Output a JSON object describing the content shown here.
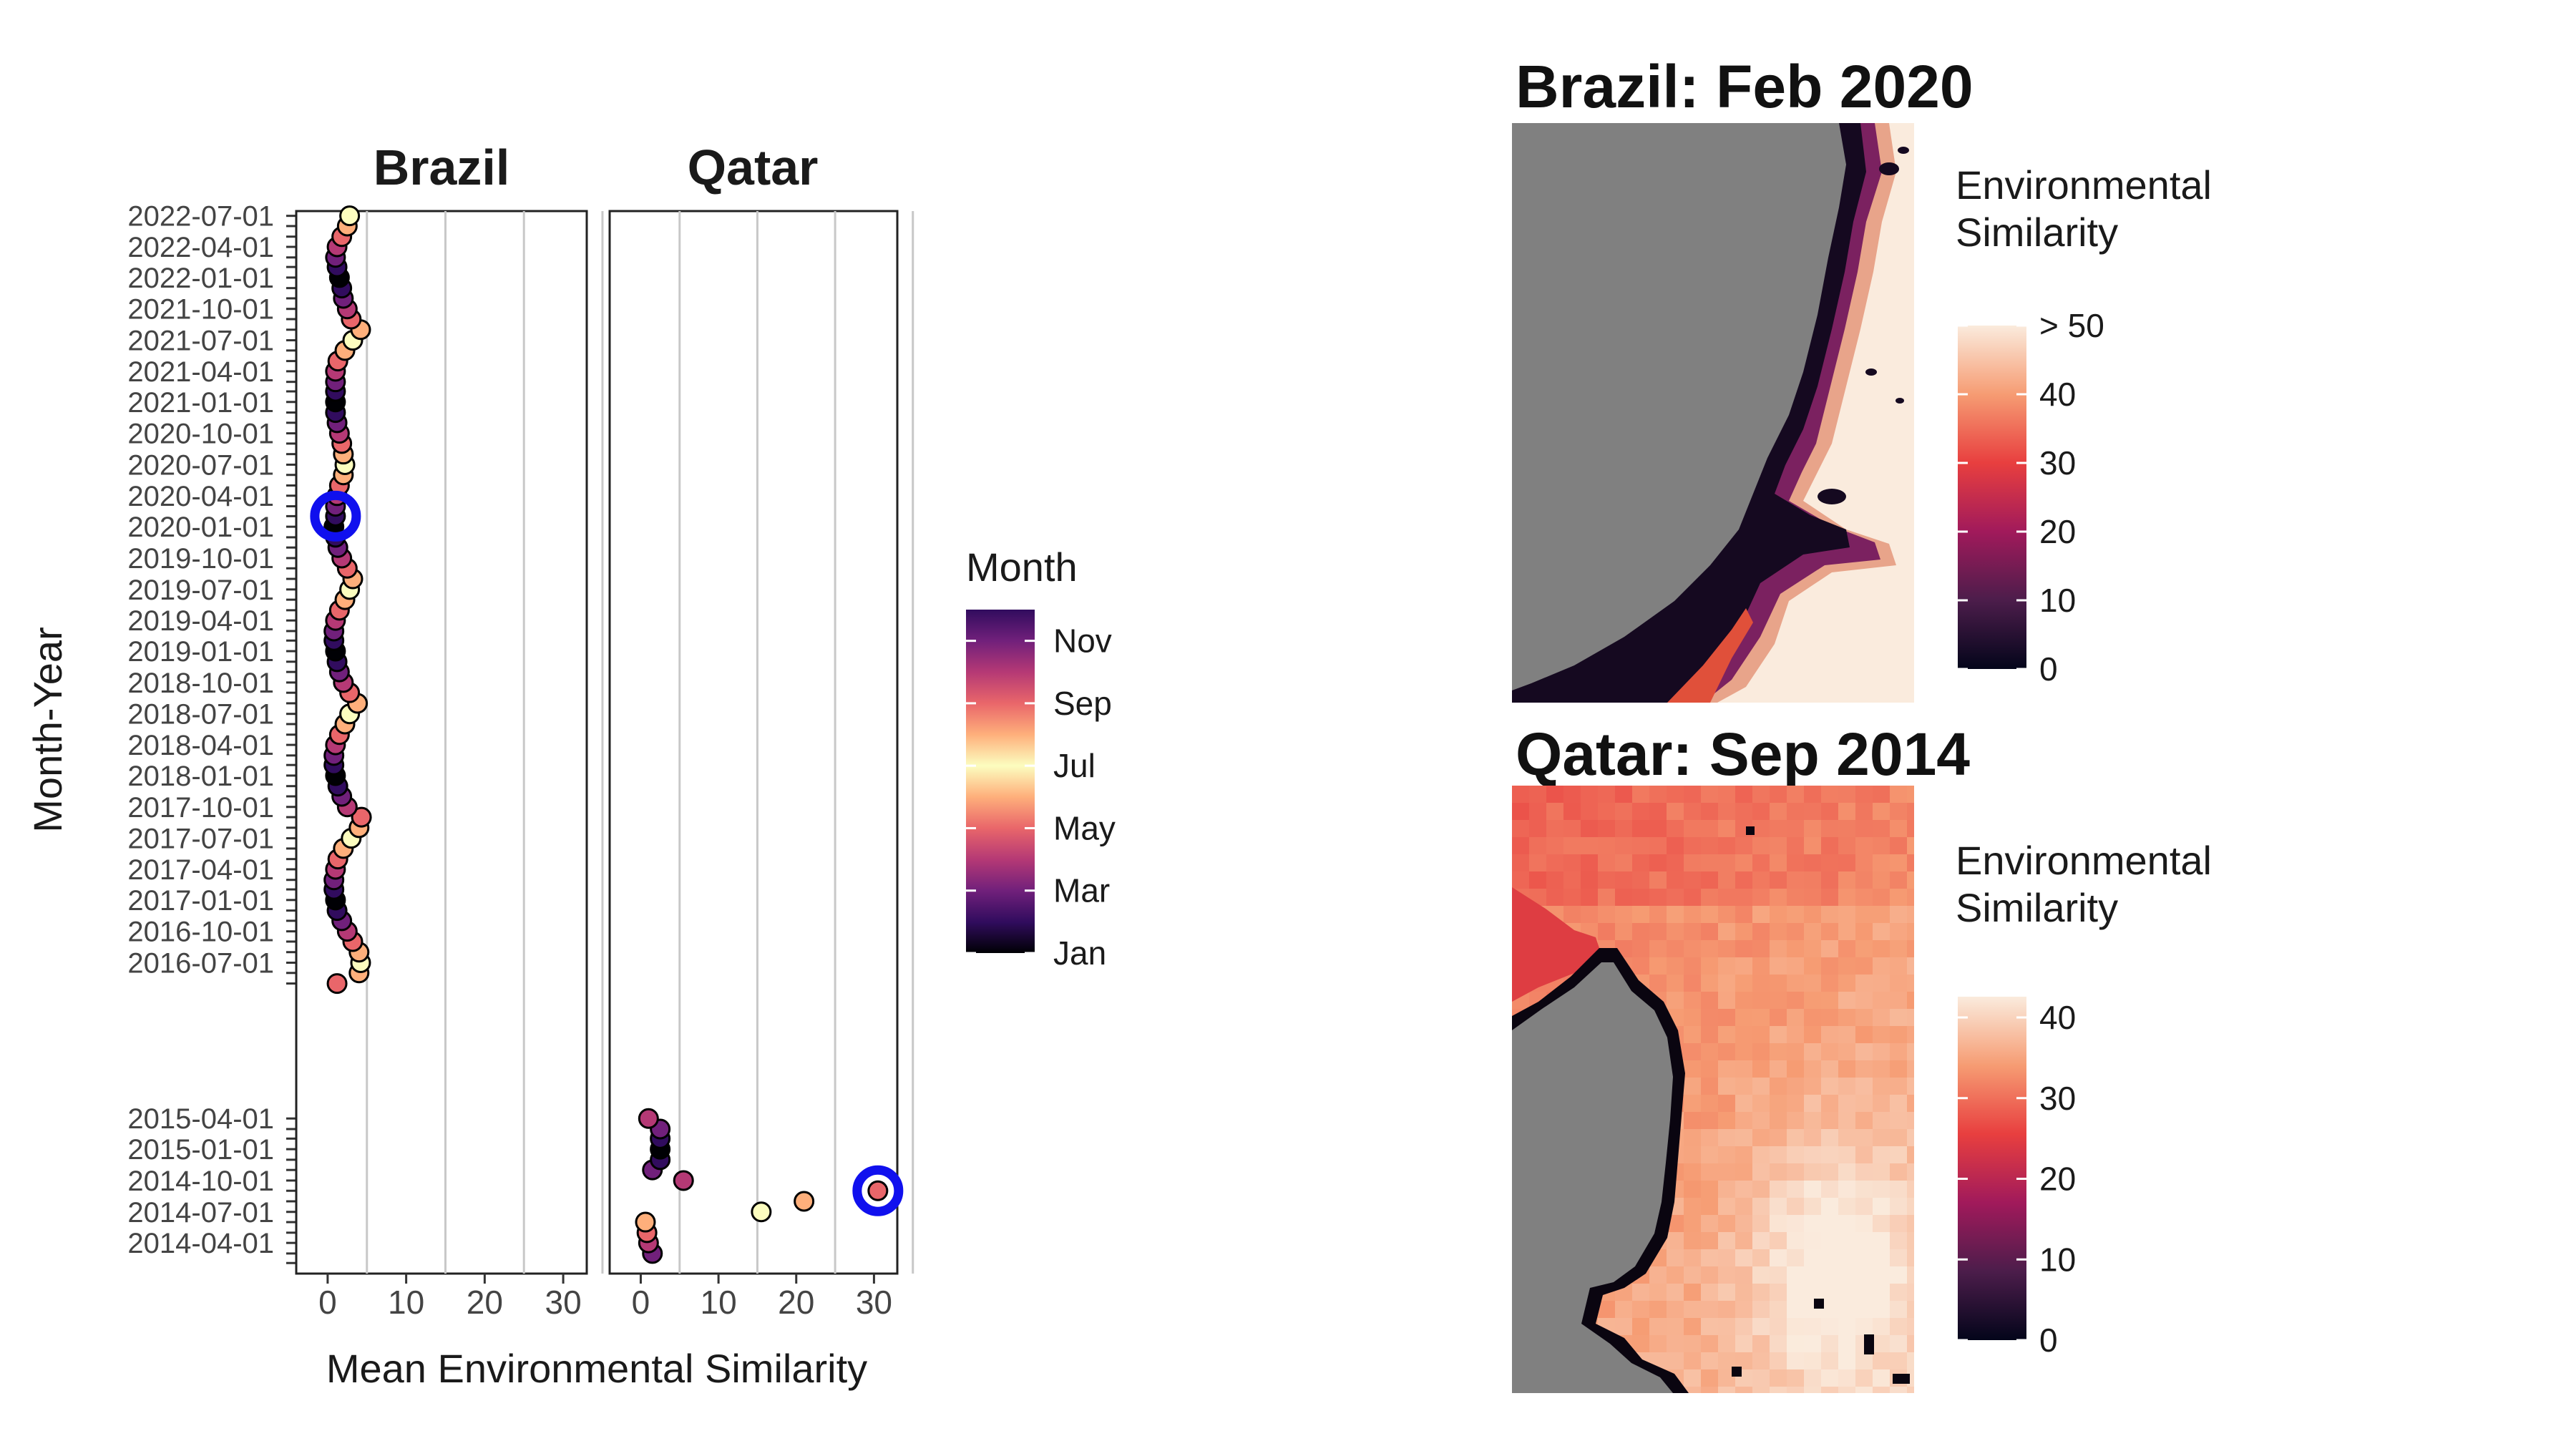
{
  "dotplot": {
    "type": "scatter",
    "x_label": "Mean Environmental Similarity",
    "y_label": "Month-Year",
    "x_ticks": [
      0,
      10,
      20,
      30
    ],
    "xlim": [
      -4,
      33
    ],
    "y_tick_labels": [
      "2014-04-01",
      "2014-07-01",
      "2014-10-01",
      "2015-01-01",
      "2015-04-01",
      "2016-07-01",
      "2016-10-01",
      "2017-01-01",
      "2017-04-01",
      "2017-07-01",
      "2017-10-01",
      "2018-01-01",
      "2018-04-01",
      "2018-07-01",
      "2018-10-01",
      "2019-01-01",
      "2019-04-01",
      "2019-07-01",
      "2019-10-01",
      "2020-01-01",
      "2020-04-01",
      "2020-07-01",
      "2020-10-01",
      "2021-01-01",
      "2021-04-01",
      "2021-07-01",
      "2021-10-01",
      "2022-01-01",
      "2022-04-01",
      "2022-07-01"
    ],
    "grid": true,
    "panels": [
      {
        "title": "Brazil",
        "points": [
          {
            "date": "2016-05-01",
            "x": 1.2,
            "month": "May"
          },
          {
            "date": "2016-06-01",
            "x": 4.0,
            "month": "Jun"
          },
          {
            "date": "2016-07-01",
            "x": 4.2,
            "month": "Jul"
          },
          {
            "date": "2016-08-01",
            "x": 4.0,
            "month": "Aug"
          },
          {
            "date": "2016-09-01",
            "x": 3.2,
            "month": "Sep"
          },
          {
            "date": "2016-10-01",
            "x": 2.5,
            "month": "Oct"
          },
          {
            "date": "2016-11-01",
            "x": 1.8,
            "month": "Nov"
          },
          {
            "date": "2016-12-01",
            "x": 1.2,
            "month": "Dec"
          },
          {
            "date": "2017-01-01",
            "x": 1.0,
            "month": "Jan"
          },
          {
            "date": "2017-02-01",
            "x": 0.8,
            "month": "Feb"
          },
          {
            "date": "2017-03-01",
            "x": 0.8,
            "month": "Mar"
          },
          {
            "date": "2017-04-01",
            "x": 1.0,
            "month": "Apr"
          },
          {
            "date": "2017-05-01",
            "x": 1.3,
            "month": "May"
          },
          {
            "date": "2017-06-01",
            "x": 2.0,
            "month": "Jun"
          },
          {
            "date": "2017-07-01",
            "x": 3.0,
            "month": "Jul"
          },
          {
            "date": "2017-08-01",
            "x": 4.0,
            "month": "Aug"
          },
          {
            "date": "2017-09-01",
            "x": 4.3,
            "month": "Sep"
          },
          {
            "date": "2017-10-01",
            "x": 2.5,
            "month": "Oct"
          },
          {
            "date": "2017-11-01",
            "x": 1.8,
            "month": "Nov"
          },
          {
            "date": "2017-12-01",
            "x": 1.3,
            "month": "Dec"
          },
          {
            "date": "2018-01-01",
            "x": 1.0,
            "month": "Jan"
          },
          {
            "date": "2018-02-01",
            "x": 0.8,
            "month": "Feb"
          },
          {
            "date": "2018-03-01",
            "x": 0.8,
            "month": "Mar"
          },
          {
            "date": "2018-04-01",
            "x": 1.0,
            "month": "Apr"
          },
          {
            "date": "2018-05-01",
            "x": 1.5,
            "month": "May"
          },
          {
            "date": "2018-06-01",
            "x": 2.2,
            "month": "Jun"
          },
          {
            "date": "2018-07-01",
            "x": 2.8,
            "month": "Jul"
          },
          {
            "date": "2018-08-01",
            "x": 3.8,
            "month": "Aug"
          },
          {
            "date": "2018-09-01",
            "x": 2.8,
            "month": "Sep"
          },
          {
            "date": "2018-10-01",
            "x": 2.0,
            "month": "Oct"
          },
          {
            "date": "2018-11-01",
            "x": 1.5,
            "month": "Nov"
          },
          {
            "date": "2018-12-01",
            "x": 1.2,
            "month": "Dec"
          },
          {
            "date": "2019-01-01",
            "x": 1.0,
            "month": "Jan"
          },
          {
            "date": "2019-02-01",
            "x": 0.8,
            "month": "Feb"
          },
          {
            "date": "2019-03-01",
            "x": 0.8,
            "month": "Mar"
          },
          {
            "date": "2019-04-01",
            "x": 1.0,
            "month": "Apr"
          },
          {
            "date": "2019-05-01",
            "x": 1.5,
            "month": "May"
          },
          {
            "date": "2019-06-01",
            "x": 2.2,
            "month": "Jun"
          },
          {
            "date": "2019-07-01",
            "x": 2.8,
            "month": "Jul"
          },
          {
            "date": "2019-08-01",
            "x": 3.2,
            "month": "Aug"
          },
          {
            "date": "2019-09-01",
            "x": 2.5,
            "month": "Sep"
          },
          {
            "date": "2019-10-01",
            "x": 1.8,
            "month": "Oct"
          },
          {
            "date": "2019-11-01",
            "x": 1.3,
            "month": "Nov"
          },
          {
            "date": "2019-12-01",
            "x": 1.0,
            "month": "Dec"
          },
          {
            "date": "2020-01-01",
            "x": 0.8,
            "month": "Jan"
          },
          {
            "date": "2020-02-01",
            "x": 1.0,
            "month": "Feb"
          },
          {
            "date": "2020-03-01",
            "x": 1.0,
            "month": "Mar"
          },
          {
            "date": "2020-04-01",
            "x": 1.2,
            "month": "Apr"
          },
          {
            "date": "2020-05-01",
            "x": 1.5,
            "month": "May"
          },
          {
            "date": "2020-06-01",
            "x": 2.0,
            "month": "Jun"
          },
          {
            "date": "2020-07-01",
            "x": 2.2,
            "month": "Jul"
          },
          {
            "date": "2020-08-01",
            "x": 2.0,
            "month": "Aug"
          },
          {
            "date": "2020-09-01",
            "x": 1.8,
            "month": "Sep"
          },
          {
            "date": "2020-10-01",
            "x": 1.5,
            "month": "Oct"
          },
          {
            "date": "2020-11-01",
            "x": 1.2,
            "month": "Nov"
          },
          {
            "date": "2020-12-01",
            "x": 1.0,
            "month": "Dec"
          },
          {
            "date": "2021-01-01",
            "x": 1.0,
            "month": "Jan"
          },
          {
            "date": "2021-02-01",
            "x": 1.0,
            "month": "Feb"
          },
          {
            "date": "2021-03-01",
            "x": 1.0,
            "month": "Mar"
          },
          {
            "date": "2021-04-01",
            "x": 1.0,
            "month": "Apr"
          },
          {
            "date": "2021-05-01",
            "x": 1.3,
            "month": "May"
          },
          {
            "date": "2021-06-01",
            "x": 2.2,
            "month": "Jun"
          },
          {
            "date": "2021-07-01",
            "x": 3.2,
            "month": "Jul"
          },
          {
            "date": "2021-08-01",
            "x": 4.2,
            "month": "Aug"
          },
          {
            "date": "2021-09-01",
            "x": 3.0,
            "month": "Sep"
          },
          {
            "date": "2021-10-01",
            "x": 2.5,
            "month": "Oct"
          },
          {
            "date": "2021-11-01",
            "x": 2.0,
            "month": "Nov"
          },
          {
            "date": "2021-12-01",
            "x": 1.8,
            "month": "Dec"
          },
          {
            "date": "2022-01-01",
            "x": 1.5,
            "month": "Jan"
          },
          {
            "date": "2022-02-01",
            "x": 1.2,
            "month": "Feb"
          },
          {
            "date": "2022-03-01",
            "x": 1.0,
            "month": "Mar"
          },
          {
            "date": "2022-04-01",
            "x": 1.2,
            "month": "Apr"
          },
          {
            "date": "2022-05-01",
            "x": 1.8,
            "month": "May"
          },
          {
            "date": "2022-06-01",
            "x": 2.5,
            "month": "Jun"
          },
          {
            "date": "2022-07-01",
            "x": 2.8,
            "month": "Jul"
          }
        ],
        "highlight": {
          "date": "2020-02-01",
          "x": 1.0
        }
      },
      {
        "title": "Qatar",
        "points": [
          {
            "date": "2014-03-01",
            "x": 1.5,
            "month": "Mar"
          },
          {
            "date": "2014-04-01",
            "x": 1.0,
            "month": "Apr"
          },
          {
            "date": "2014-05-01",
            "x": 0.8,
            "month": "May"
          },
          {
            "date": "2014-06-01",
            "x": 0.6,
            "month": "Jun"
          },
          {
            "date": "2014-07-01",
            "x": 15.5,
            "month": "Jul"
          },
          {
            "date": "2014-08-01",
            "x": 21.0,
            "month": "Aug"
          },
          {
            "date": "2014-09-01",
            "x": 30.5,
            "month": "Sep"
          },
          {
            "date": "2014-10-01",
            "x": 5.5,
            "month": "Oct"
          },
          {
            "date": "2014-11-01",
            "x": 1.5,
            "month": "Nov"
          },
          {
            "date": "2014-12-01",
            "x": 2.5,
            "month": "Dec"
          },
          {
            "date": "2015-01-01",
            "x": 2.5,
            "month": "Jan"
          },
          {
            "date": "2015-02-01",
            "x": 2.5,
            "month": "Feb"
          },
          {
            "date": "2015-03-01",
            "x": 2.5,
            "month": "Mar"
          },
          {
            "date": "2015-04-01",
            "x": 1.0,
            "month": "Apr"
          }
        ],
        "highlight": {
          "date": "2014-09-01",
          "x": 30.5
        }
      }
    ]
  },
  "month_legend": {
    "title": "Month",
    "labels": [
      "Nov",
      "Sep",
      "Jul",
      "May",
      "Mar",
      "Jan"
    ]
  },
  "maps": [
    {
      "title": "Brazil: Feb 2020",
      "legend_title_line1": "Environmental",
      "legend_title_line2": "Similarity",
      "legend_labels": [
        "> 50",
        "40",
        "30",
        "20",
        "10",
        "0"
      ]
    },
    {
      "title": "Qatar: Sep 2014",
      "legend_title_line1": "Environmental",
      "legend_title_line2": "Similarity",
      "legend_labels": [
        "40",
        "30",
        "20",
        "10",
        "0"
      ]
    }
  ],
  "colors": {
    "highlight_ring": "#1010ee",
    "land": "#808080",
    "grid": "#c8c8c8",
    "magma_stops": [
      "#000004",
      "#3b0f70",
      "#8c2981",
      "#de4968",
      "#fe9f6d",
      "#fcfdbf"
    ],
    "similarity_stops": [
      "#03051a",
      "#4c1d4b",
      "#a11a5b",
      "#e83f3f",
      "#f69c73",
      "#faebdd"
    ]
  }
}
